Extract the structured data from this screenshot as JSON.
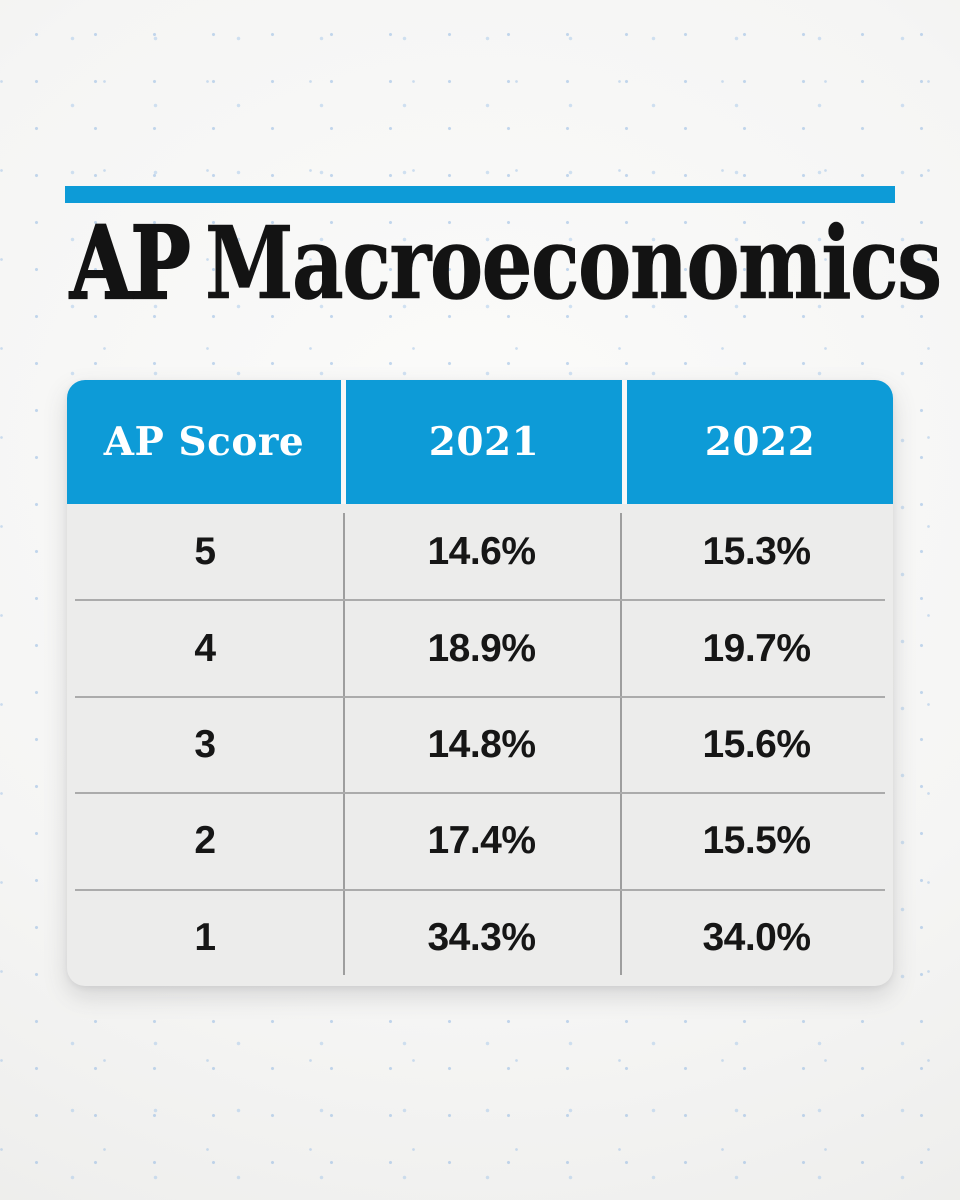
{
  "title": {
    "ap": "AP",
    "rest": "Macroeconomics"
  },
  "chart_data": {
    "type": "table",
    "title": "AP Macroeconomics",
    "columns": [
      "AP Score",
      "2021",
      "2022"
    ],
    "rows": [
      [
        "5",
        "14.6%",
        "15.3%"
      ],
      [
        "4",
        "18.9%",
        "19.7%"
      ],
      [
        "3",
        "14.8%",
        "15.6%"
      ],
      [
        "2",
        "17.4%",
        "15.5%"
      ],
      [
        "1",
        "34.3%",
        "34.0%"
      ]
    ],
    "series": [
      {
        "name": "2021",
        "values": [
          14.6,
          18.9,
          14.8,
          17.4,
          34.3
        ]
      },
      {
        "name": "2022",
        "values": [
          15.3,
          19.7,
          15.6,
          15.5,
          34.0
        ]
      }
    ],
    "categories": [
      "5",
      "4",
      "3",
      "2",
      "1"
    ]
  },
  "colors": {
    "accent_blue": "#0d9bd7",
    "row_background": "#ececeb",
    "divider_gray": "#a6a6a6",
    "text_dark": "#161616",
    "header_text": "#ffffff",
    "background_dot_blue": "#bcd6ee"
  }
}
